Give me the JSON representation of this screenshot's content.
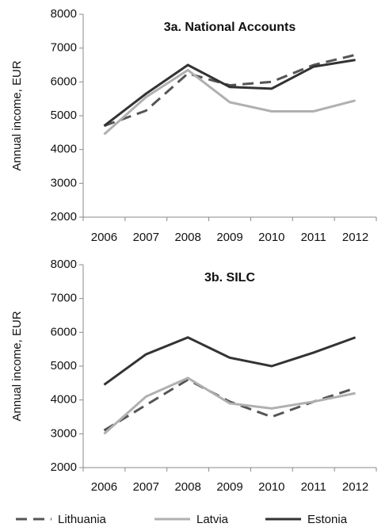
{
  "chart_data": [
    {
      "type": "line",
      "title": "3a. National Accounts",
      "y_label": "Annual income, EUR",
      "categories": [
        "2006",
        "2007",
        "2008",
        "2009",
        "2010",
        "2011",
        "2012"
      ],
      "ylim": [
        2000,
        8000
      ],
      "yticks": [
        2000,
        3000,
        4000,
        5000,
        6000,
        7000,
        8000
      ],
      "series": [
        {
          "name": "Lithuania",
          "color": "#555555",
          "dashed": true,
          "values": [
            4700,
            5150,
            6250,
            5900,
            6000,
            6500,
            6800
          ]
        },
        {
          "name": "Latvia",
          "color": "#b0b0b0",
          "dashed": false,
          "values": [
            4450,
            5550,
            6350,
            5400,
            5130,
            5130,
            5450
          ]
        },
        {
          "name": "Estonia",
          "color": "#333333",
          "dashed": false,
          "values": [
            4700,
            5650,
            6500,
            5850,
            5800,
            6450,
            6650
          ]
        }
      ]
    },
    {
      "type": "line",
      "title": "3b. SILC",
      "y_label": "Annual income, EUR",
      "categories": [
        "2006",
        "2007",
        "2008",
        "2009",
        "2010",
        "2011",
        "2012"
      ],
      "ylim": [
        2000,
        8000
      ],
      "yticks": [
        2000,
        3000,
        4000,
        5000,
        6000,
        7000,
        8000
      ],
      "series": [
        {
          "color": "#555555",
          "dashed": true,
          "values": [
            3100,
            3850,
            4600,
            3950,
            3500,
            3950,
            4350
          ]
        },
        {
          "color": "#b0b0b0",
          "dashed": false,
          "values": [
            3000,
            4100,
            4650,
            3900,
            3750,
            3950,
            4200
          ]
        },
        {
          "color": "#333333",
          "dashed": false,
          "values": [
            4450,
            5350,
            5850,
            5250,
            5000,
            5400,
            5850
          ]
        }
      ]
    }
  ]
}
